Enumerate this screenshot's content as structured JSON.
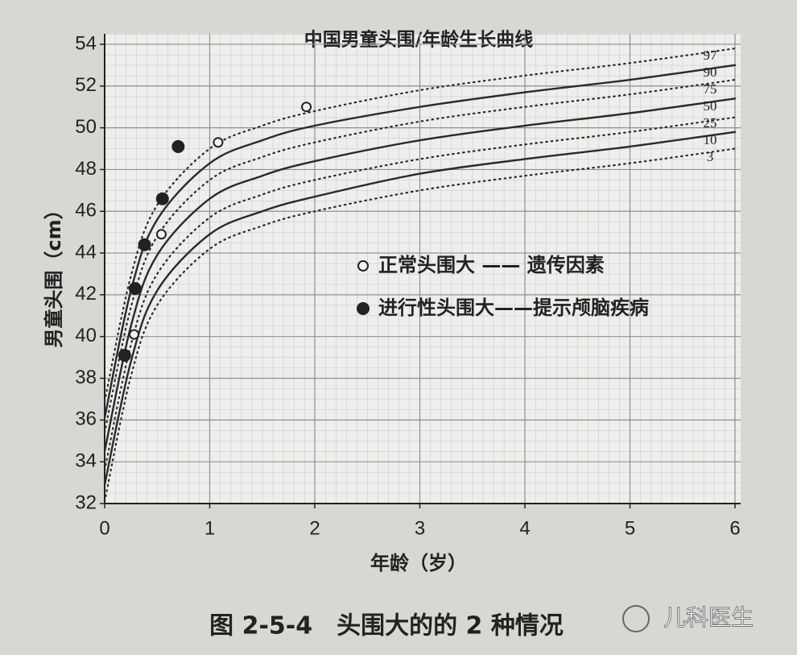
{
  "chart_data": {
    "type": "line",
    "title": "中国男童头围/年龄生长曲线",
    "x_label": "年龄（岁）",
    "y_label": "男童头围（cm）",
    "x": [
      0,
      0.25,
      0.5,
      1,
      1.5,
      2,
      3,
      4,
      5,
      6
    ],
    "series": [
      {
        "name": "97",
        "color": "#2a2a2a",
        "style": "dotted",
        "values": [
          36.9,
          42.9,
          46.3,
          49.0,
          50.1,
          50.8,
          51.8,
          52.5,
          53.1,
          53.8
        ]
      },
      {
        "name": "90",
        "color": "#2a2a2a",
        "style": "solid",
        "values": [
          36.1,
          42.2,
          45.6,
          48.3,
          49.4,
          50.1,
          51.0,
          51.7,
          52.3,
          53.0
        ]
      },
      {
        "name": "75",
        "color": "#2a2a2a",
        "style": "dotted",
        "values": [
          35.4,
          41.4,
          44.8,
          47.5,
          48.6,
          49.3,
          50.3,
          51.0,
          51.6,
          52.3
        ]
      },
      {
        "name": "50",
        "color": "#2a2a2a",
        "style": "solid",
        "values": [
          34.5,
          40.5,
          43.9,
          46.6,
          47.7,
          48.4,
          49.4,
          50.1,
          50.7,
          51.4
        ]
      },
      {
        "name": "25",
        "color": "#2a2a2a",
        "style": "dotted",
        "values": [
          33.6,
          39.6,
          43.0,
          45.7,
          46.8,
          47.5,
          48.5,
          49.2,
          49.8,
          50.5
        ]
      },
      {
        "name": "10",
        "color": "#2a2a2a",
        "style": "solid",
        "values": [
          32.9,
          38.8,
          42.2,
          44.9,
          46.0,
          46.7,
          47.8,
          48.5,
          49.1,
          49.8
        ]
      },
      {
        "name": "3",
        "color": "#2a2a2a",
        "style": "dotted",
        "values": [
          32.1,
          38.1,
          41.5,
          44.2,
          45.3,
          46.0,
          47.0,
          47.7,
          48.3,
          49.0
        ]
      }
    ],
    "scatter_series": [
      {
        "name": "正常头围大 —— 遗传因素",
        "marker": "open",
        "color": "#222222",
        "x": [
          0.28,
          0.54,
          1.08,
          1.92
        ],
        "values": [
          40.1,
          44.9,
          49.3,
          51.0
        ]
      },
      {
        "name": "进行性头围大——提示颅脑疾病",
        "marker": "filled",
        "color": "#222222",
        "x": [
          0.19,
          0.29,
          0.38,
          0.55,
          0.7
        ],
        "values": [
          39.1,
          42.3,
          44.4,
          46.6,
          49.1
        ]
      }
    ],
    "xlim": [
      0,
      6
    ],
    "xticks": [
      0,
      1,
      2,
      3,
      4,
      5,
      6
    ],
    "ylim": [
      32,
      54.5
    ],
    "yticks": [
      32,
      34,
      36,
      38,
      40,
      42,
      44,
      46,
      48,
      50,
      52,
      54
    ],
    "grid": true
  },
  "caption": "图 2-5-4　头围大的的 2 种情况",
  "watermark": "儿科医生"
}
